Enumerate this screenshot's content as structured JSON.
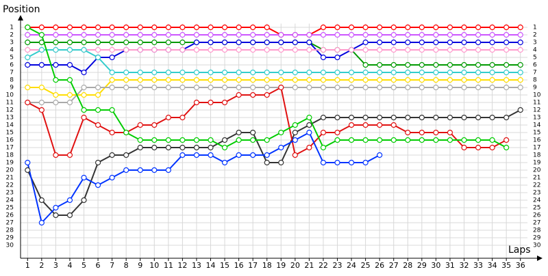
{
  "chart_data": {
    "type": "lap-chart",
    "y_label": "Position",
    "x_label": "Laps",
    "x": [
      1,
      2,
      3,
      4,
      5,
      6,
      7,
      8,
      9,
      10,
      11,
      12,
      13,
      14,
      15,
      16,
      17,
      18,
      19,
      20,
      21,
      22,
      23,
      24,
      25,
      26,
      27,
      28,
      29,
      30,
      31,
      32,
      33,
      34,
      35,
      36
    ],
    "xlim": [
      0.5,
      36.5
    ],
    "ylim": [
      0.5,
      30.5
    ],
    "y_inverted": true,
    "yticks": [
      1,
      2,
      3,
      4,
      5,
      6,
      7,
      8,
      9,
      10,
      11,
      12,
      13,
      14,
      15,
      16,
      17,
      18,
      19,
      20,
      21,
      22,
      23,
      24,
      25,
      26,
      27,
      28,
      29,
      30
    ],
    "grid": true,
    "series": [
      {
        "color": "#ff0000",
        "values": [
          1,
          1,
          1,
          1,
          1,
          1,
          1,
          1,
          1,
          1,
          1,
          1,
          1,
          1,
          1,
          1,
          1,
          1,
          2,
          2,
          2,
          1,
          1,
          1,
          1,
          1,
          1,
          1,
          1,
          1,
          1,
          1,
          1,
          1,
          1,
          1
        ]
      },
      {
        "color": "#cc55ff",
        "values": [
          2,
          2,
          2,
          2,
          2,
          2,
          2,
          2,
          2,
          2,
          2,
          2,
          2,
          2,
          2,
          2,
          2,
          2,
          2,
          2,
          2,
          2,
          2,
          2,
          2,
          2,
          2,
          2,
          2,
          2,
          2,
          2,
          2,
          2,
          2,
          2
        ]
      },
      {
        "color": "#009900",
        "values": [
          3,
          3,
          3,
          3,
          3,
          3,
          3,
          3,
          3,
          3,
          3,
          3,
          3,
          3,
          3,
          3,
          3,
          3,
          3,
          3,
          3,
          4,
          4,
          4,
          6,
          6,
          6,
          6,
          6,
          6,
          6,
          6,
          6,
          6,
          6,
          6
        ]
      },
      {
        "color": "#0000dd",
        "values": [
          6,
          6,
          6,
          6,
          7,
          5,
          5,
          4,
          4,
          4,
          4,
          4,
          3,
          3,
          3,
          3,
          3,
          3,
          3,
          3,
          3,
          5,
          5,
          4,
          3,
          3,
          3,
          3,
          3,
          3,
          3,
          3,
          3,
          3,
          3,
          3
        ]
      },
      {
        "color": "#ff99cc",
        "values": [
          4,
          4,
          4,
          4,
          4,
          4,
          4,
          4,
          4,
          4,
          4,
          4,
          4,
          4,
          4,
          4,
          4,
          4,
          4,
          4,
          4,
          4,
          4,
          4,
          4,
          4,
          4,
          4,
          4,
          4,
          4,
          4,
          4,
          4,
          4,
          4
        ]
      },
      {
        "color": "#33cccc",
        "values": [
          5,
          4,
          4,
          4,
          4,
          5,
          7,
          7,
          7,
          7,
          7,
          7,
          7,
          7,
          7,
          7,
          7,
          7,
          7,
          7,
          7,
          7,
          7,
          7,
          7,
          7,
          7,
          7,
          7,
          7,
          7,
          7,
          7,
          7,
          7,
          7
        ]
      },
      {
        "color": "#ffdd00",
        "values": [
          9,
          9,
          10,
          10,
          10,
          10,
          8,
          8,
          8,
          8,
          8,
          8,
          8,
          8,
          8,
          8,
          8,
          8,
          8,
          8,
          8,
          8,
          8,
          8,
          8,
          8,
          8,
          8,
          8,
          8,
          8,
          8,
          8,
          8,
          8,
          8
        ]
      },
      {
        "color": "#aaaaaa",
        "values": [
          11,
          11,
          11,
          11,
          9,
          9,
          9,
          9,
          9,
          9,
          9,
          9,
          9,
          9,
          9,
          9,
          9,
          9,
          9,
          9,
          9,
          9,
          9,
          9,
          9,
          9,
          9,
          9,
          9,
          9,
          9,
          9,
          9,
          9,
          9,
          9
        ]
      },
      {
        "color": "#333333",
        "values": [
          20,
          24,
          26,
          26,
          24,
          19,
          18,
          18,
          17,
          17,
          17,
          17,
          17,
          17,
          16,
          15,
          15,
          19,
          19,
          15,
          14,
          13,
          13,
          13,
          13,
          13,
          13,
          13,
          13,
          13,
          13,
          13,
          13,
          13,
          13,
          12
        ]
      },
      {
        "color": "#e01010",
        "values": [
          11,
          12,
          18,
          18,
          13,
          14,
          15,
          15,
          14,
          14,
          13,
          13,
          11,
          11,
          11,
          10,
          10,
          10,
          9,
          18,
          17,
          15,
          15,
          14,
          14,
          14,
          14,
          15,
          15,
          15,
          15,
          17,
          17,
          17,
          16,
          null
        ]
      },
      {
        "color": "#00cc00",
        "values": [
          1,
          2,
          8,
          8,
          12,
          12,
          12,
          15,
          16,
          16,
          16,
          16,
          16,
          16,
          17,
          16,
          16,
          16,
          15,
          14,
          13,
          17,
          16,
          16,
          16,
          16,
          16,
          16,
          16,
          16,
          16,
          16,
          16,
          16,
          17,
          null
        ]
      },
      {
        "color": "#0033ff",
        "values": [
          19,
          27,
          25,
          24,
          21,
          22,
          21,
          20,
          20,
          20,
          20,
          18,
          18,
          18,
          19,
          18,
          18,
          18,
          17,
          16,
          15,
          19,
          19,
          19,
          19,
          18,
          null,
          null,
          null,
          null,
          null,
          null,
          null,
          null,
          null,
          null
        ]
      }
    ]
  }
}
